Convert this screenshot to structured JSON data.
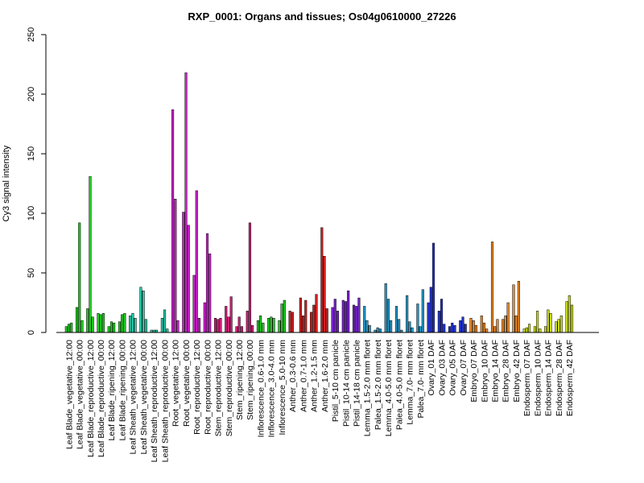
{
  "chart_data": {
    "type": "bar",
    "title": "RXP_0001: Organs and tissues; Os04g0610000_27226",
    "xlabel": "",
    "ylabel": "Cy3 signal intensity",
    "ylim": [
      0,
      250
    ],
    "yticks": [
      0,
      50,
      100,
      150,
      200,
      250
    ],
    "grid": false,
    "groups": [
      {
        "label": "Leaf Blade_vegetative_12:00",
        "color": "#22cc22",
        "values": [
          5,
          7,
          8
        ]
      },
      {
        "label": "Leaf Blade_vegetative_00:00",
        "color": "#22cc22",
        "values": [
          21,
          92,
          10
        ]
      },
      {
        "label": "Leaf Blade_reproductive_12:00",
        "color": "#22cc22",
        "values": [
          20,
          131,
          13
        ]
      },
      {
        "label": "Leaf Blade_reproductive_00:00",
        "color": "#22cc22",
        "values": [
          16,
          15,
          16
        ]
      },
      {
        "label": "Leaf Blade_ripening_12:00",
        "color": "#22cc22",
        "values": [
          5,
          9,
          8
        ]
      },
      {
        "label": "Leaf Blade_ripening_00:00",
        "color": "#22cc22",
        "values": [
          9,
          15,
          16
        ]
      },
      {
        "label": "Leaf Sheath_vegetative_12:00",
        "color": "#22ccaa",
        "values": [
          14,
          16,
          12
        ]
      },
      {
        "label": "Leaf Sheath_vegetative_00:00",
        "color": "#22ccaa",
        "values": [
          38,
          35,
          11
        ]
      },
      {
        "label": "Leaf Sheath_reproductive_12:00",
        "color": "#22ccaa",
        "values": [
          2,
          2,
          2
        ]
      },
      {
        "label": "Leaf Sheath_reproductive_00:00",
        "color": "#22ccaa",
        "values": [
          12,
          19,
          3
        ]
      },
      {
        "label": "Root_vegetative_12:00",
        "color": "#cc22cc",
        "values": [
          187,
          112,
          10
        ]
      },
      {
        "label": "Root_vegetative_00:00",
        "color": "#cc22cc",
        "values": [
          101,
          218,
          90
        ]
      },
      {
        "label": "Root_reproductive_12:00",
        "color": "#cc22cc",
        "values": [
          48,
          119,
          12
        ]
      },
      {
        "label": "Root_reproductive_00:00",
        "color": "#cc22cc",
        "values": [
          25,
          83,
          66
        ]
      },
      {
        "label": "Stem_reproductive_12:00",
        "color": "#cc2277",
        "values": [
          12,
          11,
          12
        ]
      },
      {
        "label": "Stem_reproductive_00:00",
        "color": "#cc2277",
        "values": [
          22,
          13,
          30
        ]
      },
      {
        "label": "Stem_ripening_12:00",
        "color": "#cc2277",
        "values": [
          5,
          13,
          5
        ]
      },
      {
        "label": "Stem_ripening_00:00",
        "color": "#cc2277",
        "values": [
          18,
          92,
          6
        ]
      },
      {
        "label": "Inflorescence_0.6-1.0 mm",
        "color": "#22cc22",
        "values": [
          10,
          14,
          8
        ]
      },
      {
        "label": "Inflorescence_3.0-4.0 mm",
        "color": "#22cc22",
        "values": [
          12,
          13,
          12
        ]
      },
      {
        "label": "Inflorescence_5.0-10 mm",
        "color": "#22cc22",
        "values": [
          10,
          24,
          27
        ]
      },
      {
        "label": "Anther_0.3-0.6 mm",
        "color": "#cc2222",
        "values": [
          18,
          17,
          0
        ]
      },
      {
        "label": "Anther_0.7-1.0 mm",
        "color": "#cc2222",
        "values": [
          29,
          14,
          27
        ]
      },
      {
        "label": "Anther_1.2-1.5 mm",
        "color": "#cc2222",
        "values": [
          17,
          23,
          32
        ]
      },
      {
        "label": "Anther_1.6-2.0 mm",
        "color": "#cc2222",
        "values": [
          88,
          64,
          20
        ]
      },
      {
        "label": "Pistil_5-10 cm panicle",
        "color": "#7722cc",
        "values": [
          21,
          28,
          18
        ]
      },
      {
        "label": "Pistil_10-14 cm panicle",
        "color": "#7722cc",
        "values": [
          27,
          26,
          35
        ]
      },
      {
        "label": "Pistil_14-18 cm panicle",
        "color": "#7722cc",
        "values": [
          23,
          22,
          29
        ]
      },
      {
        "label": "Lemma_1.5-2.0 mm floret",
        "color": "#2299cc",
        "values": [
          22,
          10,
          6
        ]
      },
      {
        "label": "Palea_1.5-2.0 mm floret",
        "color": "#2299cc",
        "values": [
          2,
          4,
          3
        ]
      },
      {
        "label": "Lemma_4.0-5.0 mm floret",
        "color": "#2299cc",
        "values": [
          41,
          28,
          10
        ]
      },
      {
        "label": "Palea_4.0-5.0 mm floret",
        "color": "#2299cc",
        "values": [
          22,
          11,
          2
        ]
      },
      {
        "label": "Lemma_7.0- mm floret",
        "color": "#2299cc",
        "values": [
          31,
          9,
          4
        ]
      },
      {
        "label": "Palea_7.0- mm floret",
        "color": "#2299cc",
        "values": [
          24,
          5,
          36
        ]
      },
      {
        "label": "Ovary_01 DAF",
        "color": "#2233cc",
        "values": [
          25,
          38,
          75
        ]
      },
      {
        "label": "Ovary_03 DAF",
        "color": "#2233cc",
        "values": [
          18,
          28,
          7
        ]
      },
      {
        "label": "Ovary_05 DAF",
        "color": "#2233cc",
        "values": [
          5,
          8,
          6
        ]
      },
      {
        "label": "Ovary_07 DAF",
        "color": "#2233cc",
        "values": [
          10,
          13,
          7
        ]
      },
      {
        "label": "Embryo_07 DAF",
        "color": "#ee8822",
        "values": [
          12,
          10,
          6
        ]
      },
      {
        "label": "Embryo_10 DAF",
        "color": "#ee8822",
        "values": [
          14,
          8,
          3
        ]
      },
      {
        "label": "Embryo_14 DAF",
        "color": "#ee8822",
        "values": [
          76,
          5,
          11
        ]
      },
      {
        "label": "Embryo_28 DAF",
        "color": "#ee8822",
        "values": [
          11,
          14,
          25
        ]
      },
      {
        "label": "Embryo_42 DAF",
        "color": "#ee8822",
        "values": [
          40,
          14,
          43
        ]
      },
      {
        "label": "Endosperm_07 DAF",
        "color": "#ccdd22",
        "values": [
          3,
          4,
          7
        ]
      },
      {
        "label": "Endosperm_10 DAF",
        "color": "#ccdd22",
        "values": [
          5,
          18,
          3
        ]
      },
      {
        "label": "Endosperm_14 DAF",
        "color": "#ccdd22",
        "values": [
          5,
          19,
          16
        ]
      },
      {
        "label": "Endosperm_28 DAF",
        "color": "#ccdd22",
        "values": [
          9,
          11,
          14
        ]
      },
      {
        "label": "Endosperm_42 DAF",
        "color": "#ccdd22",
        "values": [
          26,
          31,
          23
        ]
      }
    ]
  }
}
